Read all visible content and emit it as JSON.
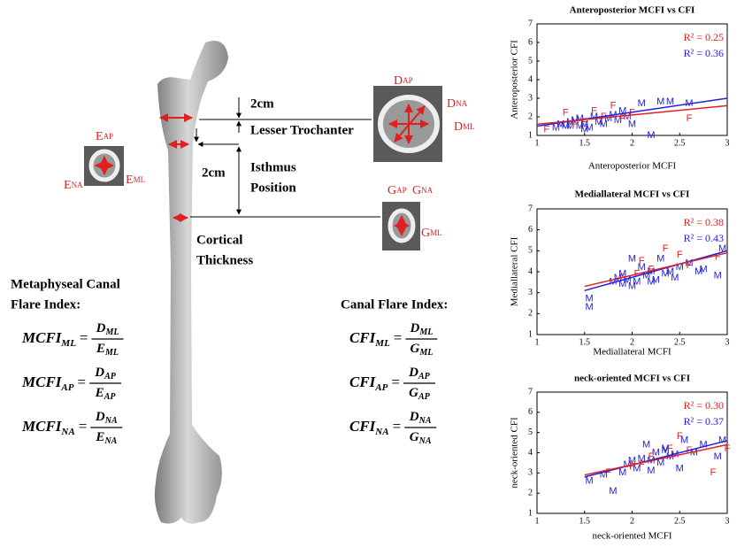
{
  "chart_data": [
    {
      "type": "scatter",
      "title": "Anteroposterior MCFI vs CFI",
      "xlabel": "Anteroposterior MCFI",
      "ylabel": "Anteroposterior CFI",
      "xlim": [
        1,
        3
      ],
      "ylim": [
        1,
        7
      ],
      "xticks": [
        1,
        1.5,
        2,
        2.5,
        3
      ],
      "yticks": [
        1,
        2,
        3,
        4,
        5,
        6,
        7
      ],
      "series": [
        {
          "marker": "M",
          "color": "#2020e0",
          "x": [
            1.2,
            1.25,
            1.3,
            1.35,
            1.4,
            1.45,
            1.5,
            1.55,
            1.6,
            1.65,
            1.7,
            1.75,
            1.8,
            1.85,
            1.9,
            1.95,
            2.0,
            2.1,
            2.3,
            2.4,
            2.6,
            1.5,
            1.45,
            1.35,
            2.2
          ],
          "values": [
            1.4,
            1.6,
            1.5,
            1.7,
            1.8,
            1.5,
            1.6,
            1.4,
            2.0,
            1.7,
            1.6,
            1.9,
            2.1,
            1.8,
            2.3,
            2.0,
            1.6,
            2.7,
            2.8,
            2.8,
            2.7,
            1.3,
            1.9,
            1.5,
            1.0
          ],
          "fit_x": [
            1,
            3
          ],
          "fit_values": [
            1.5,
            3.0
          ]
        },
        {
          "marker": "F",
          "color": "#e02020",
          "x": [
            1.1,
            1.3,
            1.5,
            1.6,
            1.7,
            1.8,
            1.9,
            2.6,
            1.4,
            2.0
          ],
          "values": [
            1.3,
            2.2,
            1.7,
            2.3,
            2.0,
            2.6,
            1.9,
            1.9,
            1.6,
            2.2
          ],
          "fit_x": [
            1,
            3
          ],
          "fit_values": [
            1.6,
            2.6
          ]
        }
      ],
      "annotations": [
        {
          "text": "R² = 0.25",
          "color": "#e02020"
        },
        {
          "text": "R² = 0.36",
          "color": "#2020e0"
        }
      ]
    },
    {
      "type": "scatter",
      "title": "Mediallateral MCFI vs CFI",
      "xlabel": "Mediallateral MCFI",
      "ylabel": "Mediallateral CFI",
      "xlim": [
        1,
        3
      ],
      "ylim": [
        1,
        7
      ],
      "xticks": [
        1,
        1.5,
        2,
        2.5,
        3
      ],
      "yticks": [
        1,
        2,
        3,
        4,
        5,
        6,
        7
      ],
      "series": [
        {
          "marker": "M",
          "color": "#2020e0",
          "x": [
            1.55,
            1.55,
            1.8,
            1.9,
            1.9,
            1.95,
            2.0,
            2.05,
            2.1,
            2.15,
            2.2,
            2.25,
            2.3,
            2.35,
            2.4,
            2.45,
            2.5,
            2.6,
            2.7,
            2.75,
            2.9,
            2.95,
            2.2,
            2.0,
            1.85
          ],
          "values": [
            2.7,
            2.3,
            3.5,
            3.4,
            3.9,
            3.6,
            4.6,
            3.5,
            4.2,
            3.8,
            4.0,
            3.6,
            4.6,
            3.9,
            4.0,
            3.7,
            4.2,
            4.4,
            4.0,
            4.1,
            3.8,
            5.1,
            3.5,
            3.3,
            3.7
          ],
          "fit_x": [
            1.5,
            3
          ],
          "fit_values": [
            3.1,
            5.0
          ]
        },
        {
          "marker": "F",
          "color": "#e02020",
          "x": [
            1.9,
            2.05,
            2.2,
            2.35,
            2.5,
            2.6,
            2.1,
            2.9
          ],
          "values": [
            3.7,
            3.9,
            4.1,
            5.1,
            4.8,
            4.3,
            4.5,
            4.7
          ],
          "fit_x": [
            1.5,
            3
          ],
          "fit_values": [
            3.3,
            4.9
          ]
        }
      ],
      "annotations": [
        {
          "text": "R² = 0.38",
          "color": "#e02020"
        },
        {
          "text": "R² = 0.43",
          "color": "#2020e0"
        }
      ]
    },
    {
      "type": "scatter",
      "title": "neck-oriented MCFI vs CFI",
      "xlabel": "neck-oriented MCFI",
      "ylabel": "neck-oriented CFI",
      "xlim": [
        1,
        3
      ],
      "ylim": [
        1,
        7
      ],
      "xticks": [
        1,
        1.5,
        2,
        2.5,
        3
      ],
      "yticks": [
        1,
        2,
        3,
        4,
        5,
        6,
        7
      ],
      "series": [
        {
          "marker": "M",
          "color": "#2020e0",
          "x": [
            1.55,
            1.8,
            1.9,
            1.95,
            2.0,
            2.05,
            2.1,
            2.15,
            2.2,
            2.25,
            2.3,
            2.35,
            2.4,
            2.45,
            2.5,
            2.55,
            2.65,
            2.75,
            2.9,
            2.95,
            2.2,
            1.7,
            2.35
          ],
          "values": [
            2.6,
            2.1,
            3.0,
            3.4,
            3.6,
            3.2,
            3.7,
            4.4,
            3.6,
            4.0,
            3.5,
            4.1,
            3.8,
            3.9,
            3.2,
            4.6,
            4.0,
            4.4,
            3.8,
            4.6,
            3.1,
            2.9,
            4.2
          ],
          "fit_x": [
            1.5,
            3
          ],
          "fit_values": [
            2.8,
            4.6
          ]
        },
        {
          "marker": "F",
          "color": "#e02020",
          "x": [
            1.75,
            2.0,
            2.1,
            2.4,
            2.5,
            2.6,
            2.85,
            3.0,
            2.2
          ],
          "values": [
            3.0,
            3.3,
            3.4,
            4.2,
            4.8,
            4.1,
            3.0,
            4.2,
            3.8
          ],
          "fit_x": [
            1.5,
            3
          ],
          "fit_values": [
            2.9,
            4.4
          ]
        }
      ],
      "annotations": [
        {
          "text": "R² = 0.30",
          "color": "#e02020"
        },
        {
          "text": "R² = 0.37",
          "color": "#2020e0"
        }
      ]
    }
  ],
  "diagram": {
    "labels": [
      "2cm",
      "Lesser Trochanter",
      "2cm",
      "Isthmus",
      "Position",
      "Cortical",
      "Thickness"
    ],
    "metaphyseal_heading": [
      "Metaphyseal Canal",
      "Flare Index:"
    ],
    "canal_heading": "Canal Flare Index:",
    "equals_sign": "=",
    "mcfi_formulas": [
      {
        "name": "MCFI",
        "sub": "ML",
        "num": "D",
        "num_sub": "ML",
        "den": "E",
        "den_sub": "ML"
      },
      {
        "name": "MCFI",
        "sub": "AP",
        "num": "D",
        "num_sub": "AP",
        "den": "E",
        "den_sub": "AP"
      },
      {
        "name": "MCFI",
        "sub": "NA",
        "num": "D",
        "num_sub": "NA",
        "den": "E",
        "den_sub": "NA"
      }
    ],
    "cfi_formulas": [
      {
        "name": "CFI",
        "sub": "ML",
        "num": "D",
        "num_sub": "ML",
        "den": "G",
        "den_sub": "ML"
      },
      {
        "name": "CFI",
        "sub": "AP",
        "num": "D",
        "num_sub": "AP",
        "den": "G",
        "den_sub": "AP"
      },
      {
        "name": "CFI",
        "sub": "NA",
        "num": "D",
        "num_sub": "NA",
        "den": "G",
        "den_sub": "NA"
      }
    ],
    "section_labels": [
      {
        "main": "E",
        "sub": "AP"
      },
      {
        "main": "E",
        "sub": "NA"
      },
      {
        "main": "E",
        "sub": "ML"
      },
      {
        "main": "D",
        "sub": "AP"
      },
      {
        "main": "D",
        "sub": "NA"
      },
      {
        "main": "D",
        "sub": "ML"
      },
      {
        "main": "G",
        "sub": "AP"
      },
      {
        "main": "G",
        "sub": "NA"
      },
      {
        "main": "G",
        "sub": "ML"
      }
    ]
  }
}
